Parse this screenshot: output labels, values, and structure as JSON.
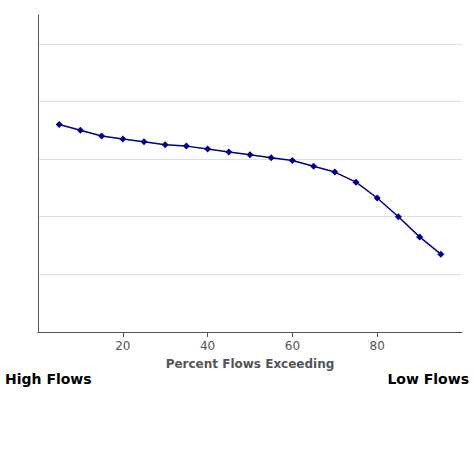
{
  "chart_data": {
    "type": "line",
    "x": [
      5,
      10,
      15,
      20,
      25,
      30,
      35,
      40,
      45,
      50,
      55,
      60,
      65,
      70,
      75,
      80,
      85,
      90,
      95
    ],
    "values": [
      0.72,
      0.7,
      0.68,
      0.67,
      0.66,
      0.65,
      0.645,
      0.635,
      0.625,
      0.615,
      0.605,
      0.595,
      0.575,
      0.555,
      0.52,
      0.465,
      0.4,
      0.33,
      0.27
    ],
    "color": "#00008B",
    "marker": "diamond",
    "xlabel": "Percent Flows Exceeding",
    "xlim": [
      0,
      100
    ],
    "ylim": [
      0.0,
      1.1
    ],
    "xticks": [
      20,
      40,
      60,
      80
    ],
    "yticks": [
      0.0,
      0.2,
      0.4,
      0.6,
      0.8,
      1.0
    ],
    "grid": true,
    "tick_labels": "x",
    "annotations": [
      "High Flows",
      "Low Flows"
    ]
  }
}
